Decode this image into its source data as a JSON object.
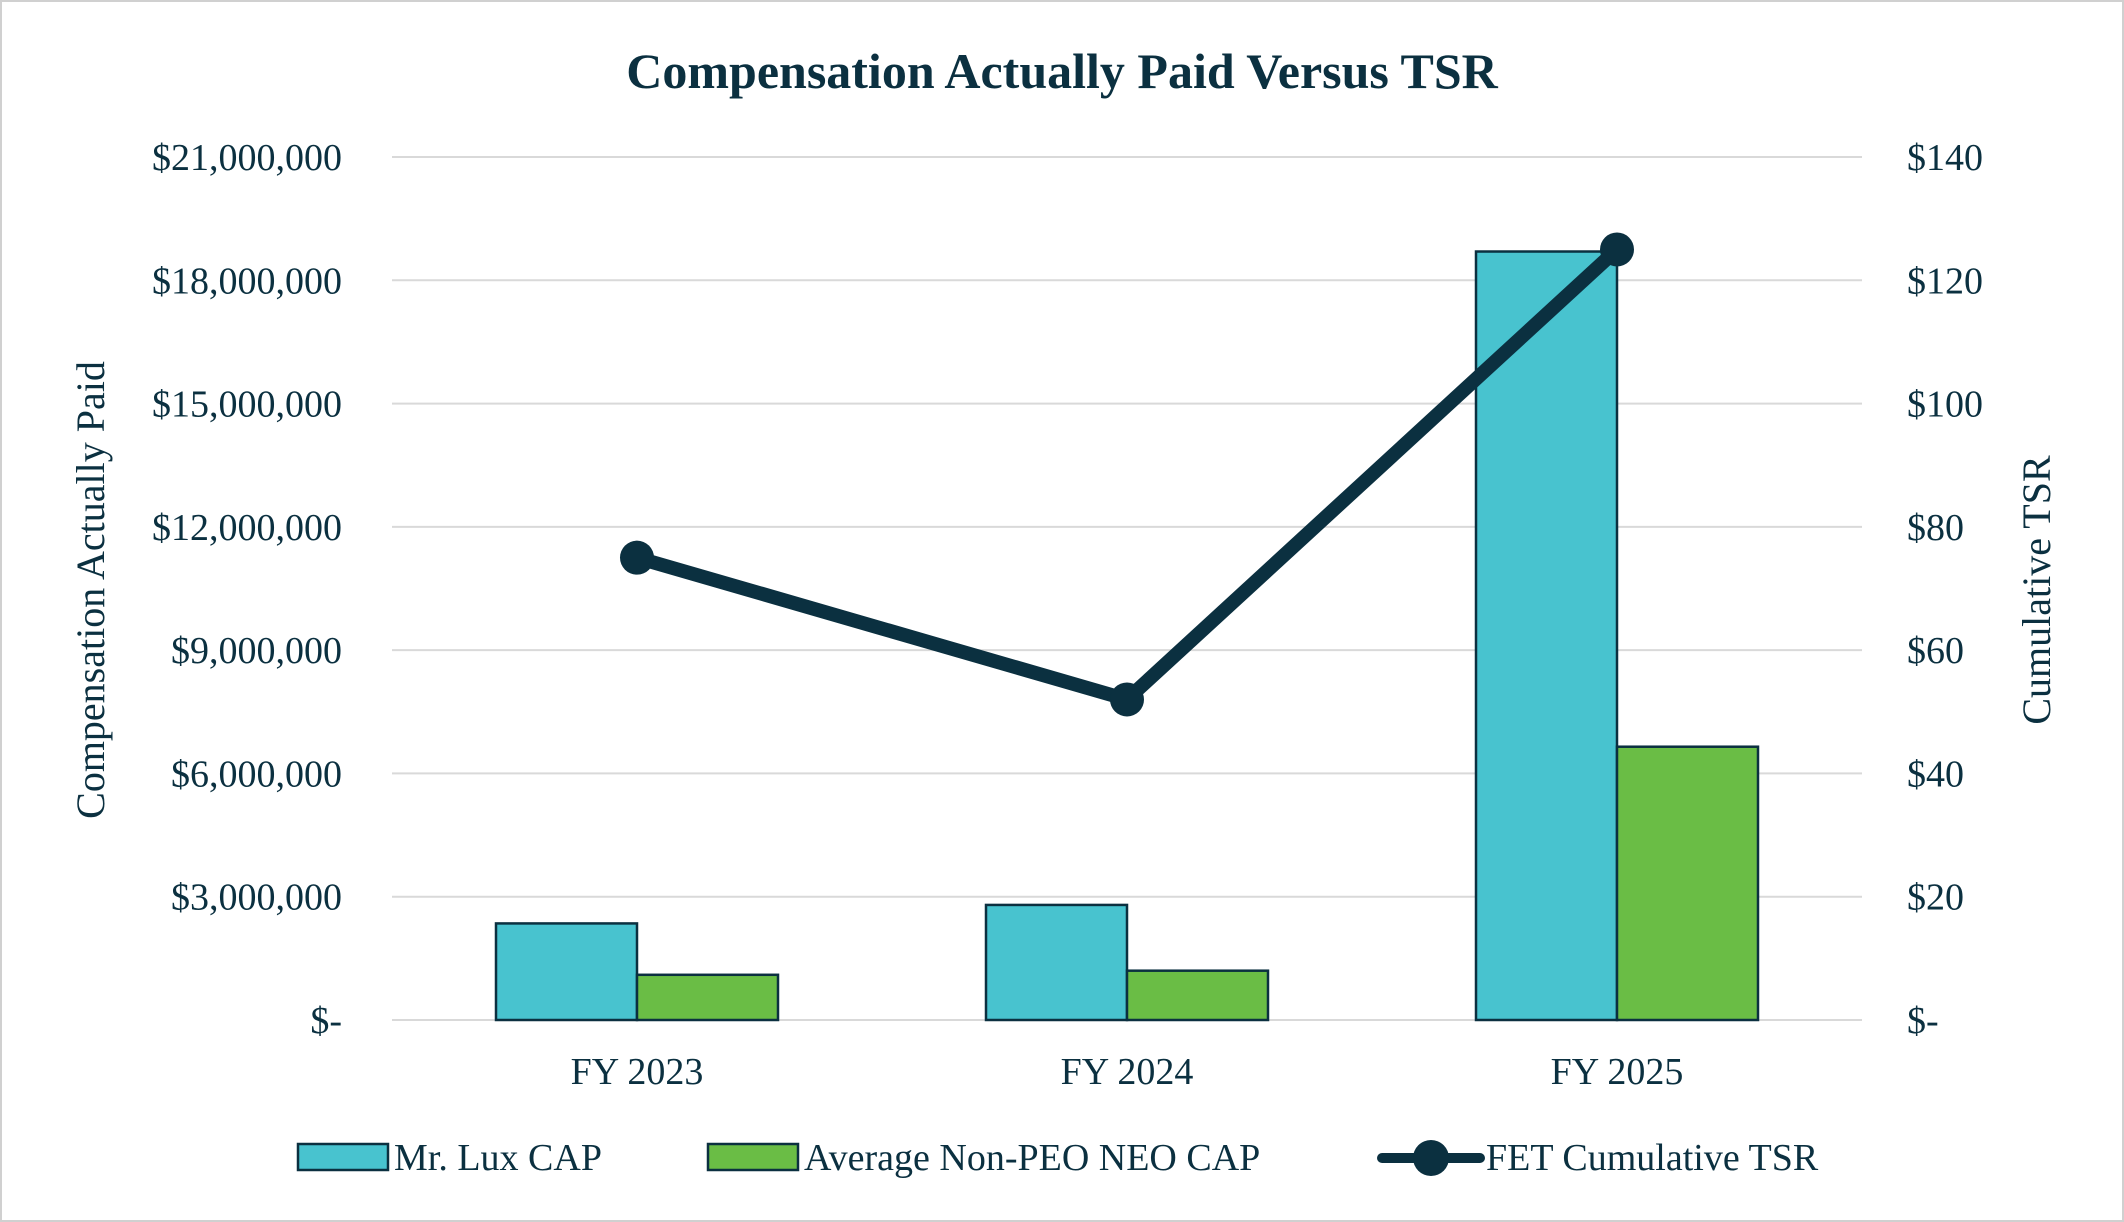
{
  "chart_data": {
    "type": "bar",
    "title": "Compensation Actually Paid Versus TSR",
    "categories": [
      "FY 2023",
      "FY 2024",
      "FY 2025"
    ],
    "y_left": {
      "label": "Compensation Actually Paid",
      "range": [
        0,
        21000000
      ],
      "ticks": [
        0,
        3000000,
        6000000,
        9000000,
        12000000,
        15000000,
        18000000,
        21000000
      ],
      "tick_labels": [
        "$-",
        "$3,000,000",
        "$6,000,000",
        "$9,000,000",
        "$12,000,000",
        "$15,000,000",
        "$18,000,000",
        "$21,000,000"
      ]
    },
    "y_right": {
      "label": "Cumulative TSR",
      "range": [
        0,
        140
      ],
      "ticks": [
        0,
        20,
        40,
        60,
        80,
        100,
        120,
        140
      ],
      "tick_labels": [
        "$-",
        "$20",
        "$40",
        "$60",
        "$80",
        "$100",
        "$120",
        "$140"
      ]
    },
    "series": [
      {
        "name": "Mr. Lux CAP",
        "type": "bar",
        "axis": "left",
        "color": "#48c3cf",
        "values": [
          2350000,
          2800000,
          18700000
        ]
      },
      {
        "name": "Average Non-PEO NEO CAP",
        "type": "bar",
        "axis": "left",
        "color": "#6abd45",
        "values": [
          1100000,
          1200000,
          6650000
        ]
      },
      {
        "name": "FET Cumulative TSR",
        "type": "line",
        "axis": "right",
        "color": "#0b3040",
        "values": [
          75,
          52,
          125
        ]
      }
    ],
    "grid": true,
    "legend_position": "bottom"
  }
}
